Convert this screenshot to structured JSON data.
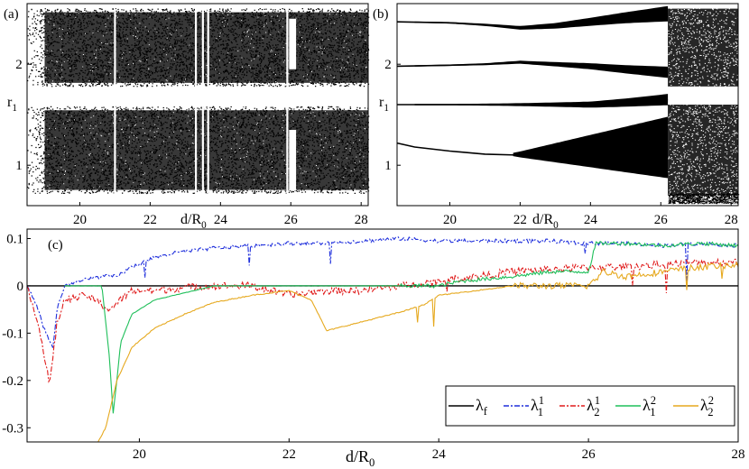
{
  "chart_data": [
    {
      "type": "scatter",
      "panel_label": "(a)",
      "xlabel": "d/R",
      "xlabel_sub": "0",
      "ylabel": "r",
      "ylabel_sub": "1",
      "xlim": [
        18.5,
        28.2
      ],
      "ylim": [
        0.6,
        2.6
      ],
      "xticks": [
        20,
        22,
        24,
        26,
        28
      ],
      "yticks": [
        1,
        2
      ],
      "bands": [
        {
          "x": [
            18.5,
            28.2
          ],
          "y": [
            0.72,
            1.58
          ]
        },
        {
          "x": [
            18.5,
            28.2
          ],
          "y": [
            1.78,
            2.55
          ]
        }
      ],
      "gaps": [
        {
          "x": [
            18.85,
            19.0
          ],
          "y": [
            1.58,
            1.78
          ]
        },
        {
          "x": [
            25.95,
            26.15
          ],
          "y": [
            0.75,
            1.35
          ]
        },
        {
          "x": [
            25.95,
            26.15
          ],
          "y": [
            1.95,
            2.45
          ]
        }
      ],
      "white_lines_x": [
        21.0,
        23.3,
        23.5,
        23.65,
        25.9
      ]
    },
    {
      "type": "line",
      "panel_label": "(b)",
      "xlabel": "d/R",
      "xlabel_sub": "0",
      "ylabel": "r",
      "ylabel_sub": "1",
      "xlim": [
        18.5,
        28.2
      ],
      "ylim": [
        0.6,
        2.6
      ],
      "xticks": [
        20,
        22,
        24,
        26,
        28
      ],
      "yticks": [
        1,
        2
      ],
      "branches": [
        {
          "x": [
            18.5,
            20,
            21,
            22,
            23,
            24,
            25,
            26.2
          ],
          "y": [
            2.42,
            2.41,
            2.39,
            2.36,
            2.38,
            2.42,
            2.46,
            2.5
          ]
        },
        {
          "x": [
            18.5,
            20,
            21,
            22,
            23,
            24,
            25,
            26.2
          ],
          "y": [
            1.98,
            1.99,
            2.0,
            2.02,
            2.0,
            1.98,
            1.95,
            1.92
          ]
        },
        {
          "x": [
            18.5,
            20,
            21,
            22,
            23,
            24,
            25,
            26.2
          ],
          "y": [
            1.6,
            1.6,
            1.6,
            1.6,
            1.6,
            1.6,
            1.62,
            1.65
          ]
        },
        {
          "x": [
            18.5,
            19,
            20,
            21,
            22,
            23,
            24,
            25,
            26.2
          ],
          "y": [
            1.22,
            1.18,
            1.14,
            1.11,
            1.1,
            1.1,
            1.1,
            1.1,
            1.1
          ]
        }
      ],
      "chaos_region": {
        "x": [
          21.8,
          26.2
        ],
        "spread": [
          0.02,
          0.38
        ]
      },
      "full_chaos_x": [
        26.2,
        28.2
      ],
      "full_chaos_y": [
        0.7,
        1.6
      ]
    },
    {
      "type": "line",
      "panel_label": "(c)",
      "xlabel": "d/R",
      "xlabel_sub": "0",
      "xlim": [
        18.5,
        28
      ],
      "ylim": [
        -0.33,
        0.12
      ],
      "xticks": [
        20,
        22,
        24,
        26,
        28
      ],
      "yticks": [
        0.1,
        0,
        -0.1,
        -0.2,
        -0.3
      ],
      "ytick_labels": [
        "0.1",
        "0",
        "-0.1",
        "-0.2",
        "-0.3"
      ],
      "legend_position": "bottom-right",
      "series": [
        {
          "name": "λ",
          "name_sub": "f",
          "color": "#000000",
          "x": [
            18.5,
            28
          ],
          "y": [
            0,
            0
          ]
        },
        {
          "name": "λ",
          "name_sup": "1",
          "name_sub": "1",
          "color": "#1f2fdc",
          "x": [
            18.5,
            18.6,
            18.75,
            18.85,
            18.9,
            19.0,
            19.2,
            19.5,
            19.7,
            19.9,
            20.2,
            20.5,
            21.0,
            21.5,
            22.0,
            22.5,
            23.0,
            23.5,
            24.0,
            24.5,
            25.0,
            25.5,
            25.85,
            26.0,
            26.5,
            27.0,
            27.5,
            28.0
          ],
          "y": [
            0.0,
            -0.03,
            -0.1,
            -0.13,
            -0.05,
            0.0,
            0.01,
            0.02,
            0.02,
            0.04,
            0.06,
            0.07,
            0.08,
            0.085,
            0.09,
            0.09,
            0.095,
            0.1,
            0.095,
            0.095,
            0.095,
            0.095,
            0.09,
            0.09,
            0.09,
            0.085,
            0.09,
            0.085
          ]
        },
        {
          "name": "λ",
          "name_sup": "1",
          "name_sub": "2",
          "color": "#e01b1b",
          "x": [
            18.5,
            18.6,
            18.7,
            18.8,
            18.9,
            19.0,
            19.3,
            19.6,
            19.9,
            20.2,
            20.5,
            21.0,
            21.5,
            22.0,
            22.5,
            23.0,
            23.5,
            24.0,
            24.5,
            25.0,
            25.5,
            26.0,
            26.5,
            27.0,
            27.5,
            28.0
          ],
          "y": [
            0.0,
            -0.05,
            -0.12,
            -0.21,
            -0.08,
            -0.03,
            -0.02,
            -0.05,
            -0.01,
            -0.01,
            -0.005,
            0.0,
            0.0,
            -0.02,
            -0.01,
            -0.01,
            0.0,
            0.01,
            0.02,
            0.03,
            0.035,
            0.04,
            0.04,
            0.045,
            0.05,
            0.05
          ]
        },
        {
          "name": "λ",
          "name_sup": "2",
          "name_sub": "1",
          "color": "#1fbf5a",
          "x": [
            19.0,
            19.5,
            19.6,
            19.65,
            19.7,
            19.75,
            19.9,
            20.2,
            20.6,
            21.0,
            22.0,
            23.0,
            24.0,
            24.3,
            25.0,
            25.5,
            26.0,
            26.1,
            26.5,
            27.0,
            27.5,
            28.0
          ],
          "y": [
            0.0,
            0.0,
            -0.15,
            -0.27,
            -0.2,
            -0.12,
            -0.06,
            -0.03,
            -0.015,
            0.0,
            0.0,
            0.0,
            0.0,
            0.01,
            0.02,
            0.03,
            0.03,
            0.09,
            0.09,
            0.085,
            0.09,
            0.085
          ]
        },
        {
          "name": "λ",
          "name_sup": "2",
          "name_sub": "2",
          "color": "#e6a91f",
          "x": [
            19.45,
            19.55,
            19.7,
            19.9,
            20.2,
            20.6,
            21.0,
            21.5,
            22.0,
            22.3,
            22.5,
            23.0,
            23.5,
            23.8,
            24.0,
            24.5,
            25.0,
            25.5,
            26.0,
            26.2,
            26.5,
            27.0,
            27.5,
            28.0
          ],
          "y": [
            -0.33,
            -0.3,
            -0.2,
            -0.13,
            -0.09,
            -0.06,
            -0.035,
            -0.02,
            -0.01,
            -0.03,
            -0.095,
            -0.075,
            -0.055,
            -0.04,
            -0.02,
            -0.01,
            0.0,
            0.0,
            0.0,
            0.03,
            0.02,
            0.03,
            0.04,
            0.045
          ]
        }
      ]
    }
  ]
}
